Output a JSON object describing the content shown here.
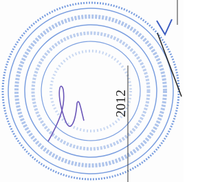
{
  "document": {
    "stamp_date": "2012"
  }
}
